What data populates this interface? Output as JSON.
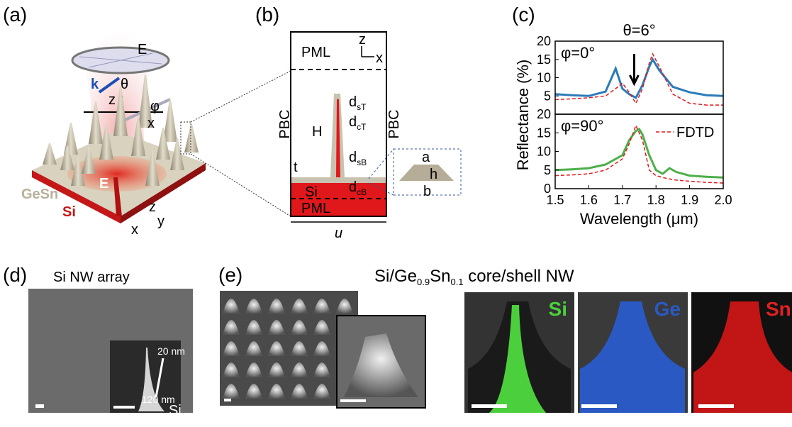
{
  "panel_labels": {
    "a": "(a)",
    "b": "(b)",
    "c": "(c)",
    "d": "(d)",
    "e": "(e)"
  },
  "panel_a": {
    "e_field_top": "E",
    "k": "k",
    "theta": "θ",
    "z": "z",
    "phi": "φ",
    "x": "x",
    "gesn": "GeSn",
    "si": "Si",
    "e_field_center": "E",
    "axis_z": "z",
    "axis_y": "y",
    "axis_x": "x"
  },
  "panel_b": {
    "pml_top": "PML",
    "z": "z",
    "x": "x",
    "pbc_left": "PBC",
    "pbc_right": "PBC",
    "d_st": {
      "base": "d",
      "sub": "sT"
    },
    "d_ct": {
      "base": "d",
      "sub": "cT"
    },
    "h_height": "H",
    "d_sb": {
      "base": "d",
      "sub": "sB"
    },
    "t": "t",
    "si": "Si",
    "d_cb": {
      "base": "d",
      "sub": "cB"
    },
    "pml_bottom": "PML",
    "u": "u",
    "a": "a",
    "h": "h",
    "b": "b"
  },
  "panel_d": {
    "title": "Si NW array",
    "tip": "20 nm",
    "base": "120 nm",
    "si": "Si"
  },
  "panel_e": {
    "title": [
      {
        "text": "Si/Ge"
      },
      {
        "text": "0.9",
        "sub": true
      },
      {
        "text": "Sn"
      },
      {
        "text": "0.1",
        "sub": true
      },
      {
        "text": " core/shell NW"
      }
    ],
    "maps": [
      "Si",
      "Ge",
      "Sn"
    ]
  },
  "chart_data": [
    {
      "type": "line",
      "title": "θ=6°",
      "ylabel": "Reflectance (%)",
      "annotation": "φ=0°",
      "x": [
        1.5,
        1.55,
        1.6,
        1.65,
        1.68,
        1.7,
        1.72,
        1.74,
        1.76,
        1.78,
        1.79,
        1.81,
        1.85,
        1.9,
        1.95,
        2.0
      ],
      "xlim": [
        1.5,
        2.0
      ],
      "ylim": [
        0,
        20
      ],
      "yticks": [
        5,
        10,
        15,
        20
      ],
      "series": [
        {
          "color": "#2b7bba",
          "style": "solid",
          "values": [
            5.5,
            5.2,
            5.0,
            6.2,
            12.5,
            7,
            5.5,
            4.5,
            8,
            13,
            15,
            12,
            7.5,
            6,
            5.2,
            5
          ]
        },
        {
          "color": "#e41a1c",
          "style": "dashed",
          "values": [
            4,
            4.2,
            4.5,
            5,
            7,
            8.5,
            6,
            3,
            7,
            14,
            16.5,
            13,
            5.5,
            3,
            2.5,
            2.5
          ]
        }
      ]
    },
    {
      "type": "line",
      "xlabel": "Wavelength (μm)",
      "annotation": "φ=90°",
      "x": [
        1.5,
        1.55,
        1.6,
        1.65,
        1.7,
        1.72,
        1.74,
        1.75,
        1.76,
        1.78,
        1.8,
        1.82,
        1.84,
        1.86,
        1.9,
        1.95,
        2.0
      ],
      "xlim": [
        1.5,
        2.0
      ],
      "xticks": [
        1.5,
        1.6,
        1.7,
        1.8,
        1.9,
        {
          "value": 2.0,
          "label": "2.0"
        }
      ],
      "ylim": [
        0,
        20
      ],
      "yticks": [
        0,
        5,
        10,
        15,
        20
      ],
      "series": [
        {
          "color": "#4daf4a",
          "style": "solid",
          "values": [
            5,
            5.2,
            5.5,
            6.5,
            9,
            13,
            15.5,
            16,
            14.5,
            9,
            5,
            4,
            5.5,
            4.5,
            3.5,
            3.2,
            3
          ]
        },
        {
          "name": "FDTD",
          "color": "#e41a1c",
          "style": "dashed",
          "values": [
            3.5,
            3.7,
            4,
            5,
            8,
            12,
            17,
            15,
            13,
            5,
            3.5,
            3,
            2.6,
            2.3,
            2,
            1.7,
            1.5
          ]
        }
      ]
    }
  ]
}
